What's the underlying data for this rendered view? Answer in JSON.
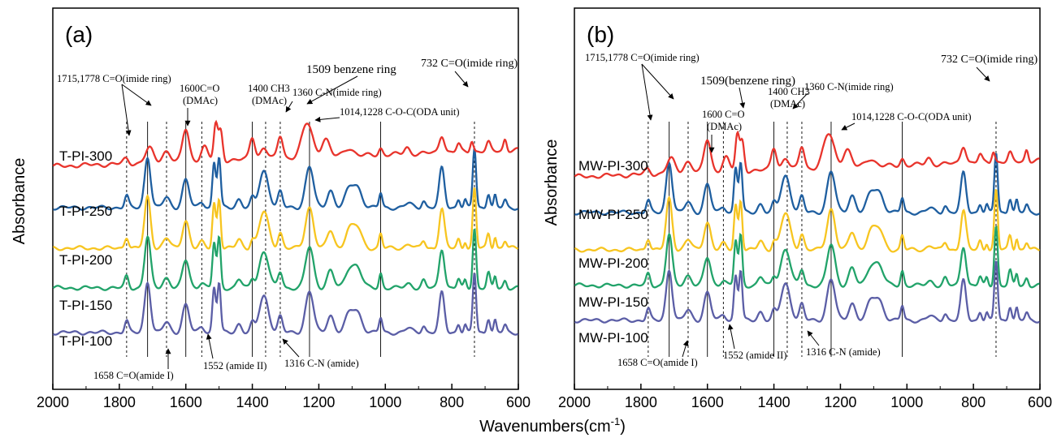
{
  "figure": {
    "xlabel": "Wavenumbers(cm",
    "xlabel_sup": "-1",
    "xlabel_close": ")"
  },
  "chart_data": [
    {
      "type": "line",
      "panel_label": "(a)",
      "ylabel": "Absorbance",
      "xlim": [
        2000,
        600
      ],
      "x_reversed": true,
      "xticks": [
        2000,
        1800,
        1600,
        1400,
        1200,
        1000,
        800,
        600
      ],
      "grid": false,
      "series": [
        {
          "name": "T-PI-300",
          "color": "#5b5ea6"
        },
        {
          "name": "T-PI-250",
          "color": "#22a36a"
        },
        {
          "name": "T-PI-200",
          "color": "#f7c520"
        },
        {
          "name": "T-PI-150",
          "color": "#1f5fa0"
        },
        {
          "name": "T-PI-100",
          "color": "#e8342c"
        }
      ],
      "annotations": [
        {
          "text": "1715,1778 C=O(imide ring)"
        },
        {
          "text": "1509 benzene ring"
        },
        {
          "text": "1600C=O"
        },
        {
          "text": "(DMAc)"
        },
        {
          "text": "1400 CH3"
        },
        {
          "text": "(DMAc)"
        },
        {
          "text": "1360 C-N(imide ring)"
        },
        {
          "text": "1014,1228 C-O-C(ODA unit)"
        },
        {
          "text": "732 C=O(imide ring)"
        },
        {
          "text": "1658 C=O(amide I)"
        },
        {
          "text": "1552 (amide II)"
        },
        {
          "text": "1316 C-N  (amide)"
        }
      ]
    },
    {
      "type": "line",
      "panel_label": "(b)",
      "ylabel": "Absorbance",
      "xlim": [
        2000,
        600
      ],
      "x_reversed": true,
      "xticks": [
        2000,
        1800,
        1600,
        1400,
        1200,
        1000,
        800,
        600
      ],
      "grid": false,
      "series": [
        {
          "name": "MW-PI-300",
          "color": "#5b5ea6"
        },
        {
          "name": "MW-PI-250",
          "color": "#22a36a"
        },
        {
          "name": "MW-PI-200",
          "color": "#f7c520"
        },
        {
          "name": "MW-PI-150",
          "color": "#1f5fa0"
        },
        {
          "name": "MW-PI-100",
          "color": "#e8342c"
        }
      ],
      "annotations": [
        {
          "text": "1715,1778 C=O(imide ring)"
        },
        {
          "text": "1509(benzene ring)"
        },
        {
          "text": "1600 C=O"
        },
        {
          "text": "(DMAc)"
        },
        {
          "text": "1400 CH3"
        },
        {
          "text": "(DMAc)"
        },
        {
          "text": "1360 C-N(imide ring)"
        },
        {
          "text": "1014,1228 C-O-C(ODA unit)"
        },
        {
          "text": "732 C=O(imide ring)"
        },
        {
          "text": "1658 C=O(amide I)"
        },
        {
          "text": "1552 (amide II)"
        },
        {
          "text": "1316 C-N  (amide)"
        }
      ]
    }
  ]
}
